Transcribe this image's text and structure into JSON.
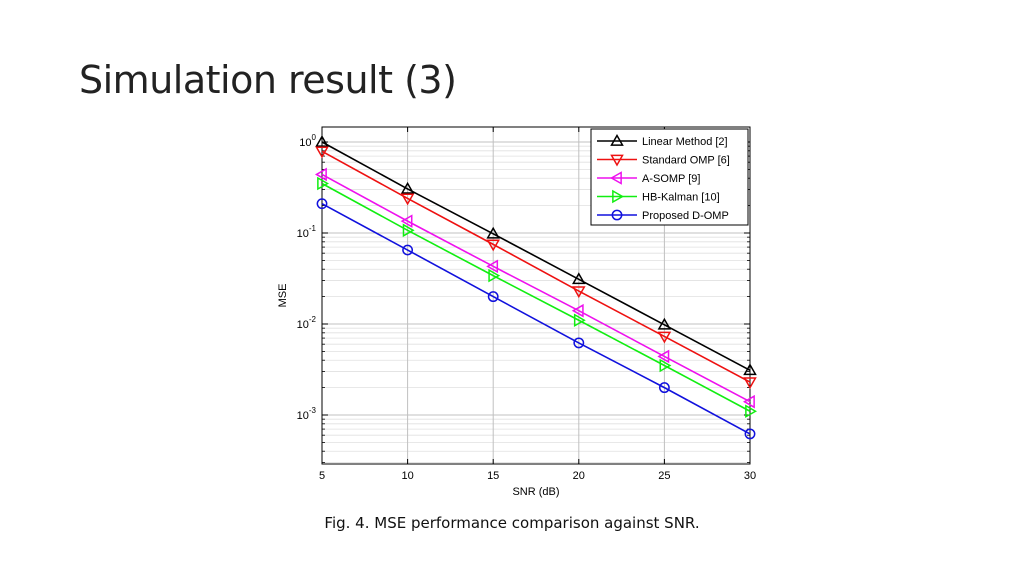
{
  "slide": {
    "title": "Simulation result (3)",
    "caption": "Fig. 4. MSE performance comparison against SNR."
  },
  "chart_data": {
    "type": "line",
    "xlabel": "SNR (dB)",
    "ylabel": "MSE",
    "xlim": [
      5,
      30
    ],
    "ylim": [
      0.0003,
      1
    ],
    "yscale": "log",
    "grid": true,
    "legend_position": "top-right",
    "x": [
      5,
      10,
      15,
      20,
      25,
      30
    ],
    "x_ticks": [
      5,
      10,
      15,
      20,
      25,
      30
    ],
    "y_ticks": [
      {
        "value": 1,
        "base": "10",
        "exp": "0"
      },
      {
        "value": 0.1,
        "base": "10",
        "exp": "-1"
      },
      {
        "value": 0.01,
        "base": "10",
        "exp": "-2"
      },
      {
        "value": 0.001,
        "base": "10",
        "exp": "-3"
      }
    ],
    "series": [
      {
        "name": "Linear Method [2]",
        "color": "#000000",
        "marker": "triangle-up",
        "values": [
          1.0,
          0.305,
          0.098,
          0.031,
          0.0098,
          0.0031
        ]
      },
      {
        "name": "Standard OMP [6]",
        "color": "#ee1111",
        "marker": "triangle-down",
        "values": [
          0.79,
          0.24,
          0.075,
          0.023,
          0.0073,
          0.0023
        ]
      },
      {
        "name": "A-SOMP [9]",
        "color": "#ee11ee",
        "marker": "triangle-left",
        "values": [
          0.44,
          0.135,
          0.043,
          0.014,
          0.0044,
          0.0014
        ]
      },
      {
        "name": "HB-Kalman [10]",
        "color": "#11ee11",
        "marker": "triangle-right",
        "values": [
          0.35,
          0.107,
          0.034,
          0.011,
          0.0035,
          0.0011
        ]
      },
      {
        "name": "Proposed D-OMP",
        "color": "#1111dd",
        "marker": "circle",
        "values": [
          0.21,
          0.065,
          0.02,
          0.0062,
          0.002,
          0.00062
        ]
      }
    ]
  }
}
